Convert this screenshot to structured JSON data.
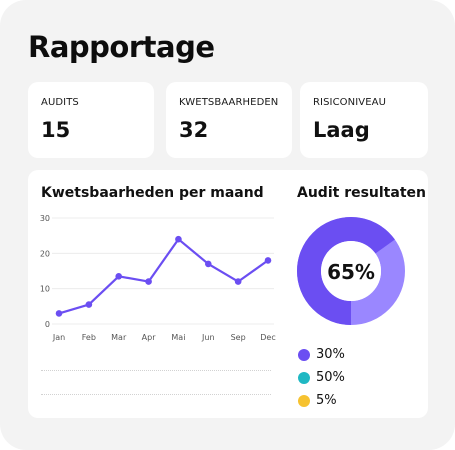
{
  "page": {
    "title": "Rapportage"
  },
  "stats": [
    {
      "label": "AUDITS",
      "value": "15"
    },
    {
      "label": "KWETSBAARHEDEN",
      "value": "32"
    },
    {
      "label": "RISICONIVEAU",
      "value": "Laag"
    }
  ],
  "chart_data": {
    "type": "line",
    "title": "Kwetsbaarheden per maand",
    "categories": [
      "Jan",
      "Feb",
      "Mar",
      "Apr",
      "Mai",
      "Jun",
      "Sep",
      "Dec"
    ],
    "series": [
      {
        "values": [
          3,
          5.5,
          13.5,
          12,
          24,
          17,
          12,
          18
        ]
      }
    ],
    "yticks": [
      0,
      10,
      20,
      30
    ],
    "ylim": [
      0,
      30
    ],
    "grid": true,
    "color": "#6b4ef2"
  },
  "donut": {
    "title": "Audit resultaten",
    "center_label": "65%",
    "value_fraction": 0.65,
    "colors": {
      "primary": "#6b4ef2",
      "secondary": "#9a87ff"
    },
    "legend": [
      {
        "label": "30%",
        "color": "#6b4ef2"
      },
      {
        "label": "50%",
        "color": "#1fb8c3"
      },
      {
        "label": "5%",
        "color": "#f6c230"
      }
    ]
  }
}
